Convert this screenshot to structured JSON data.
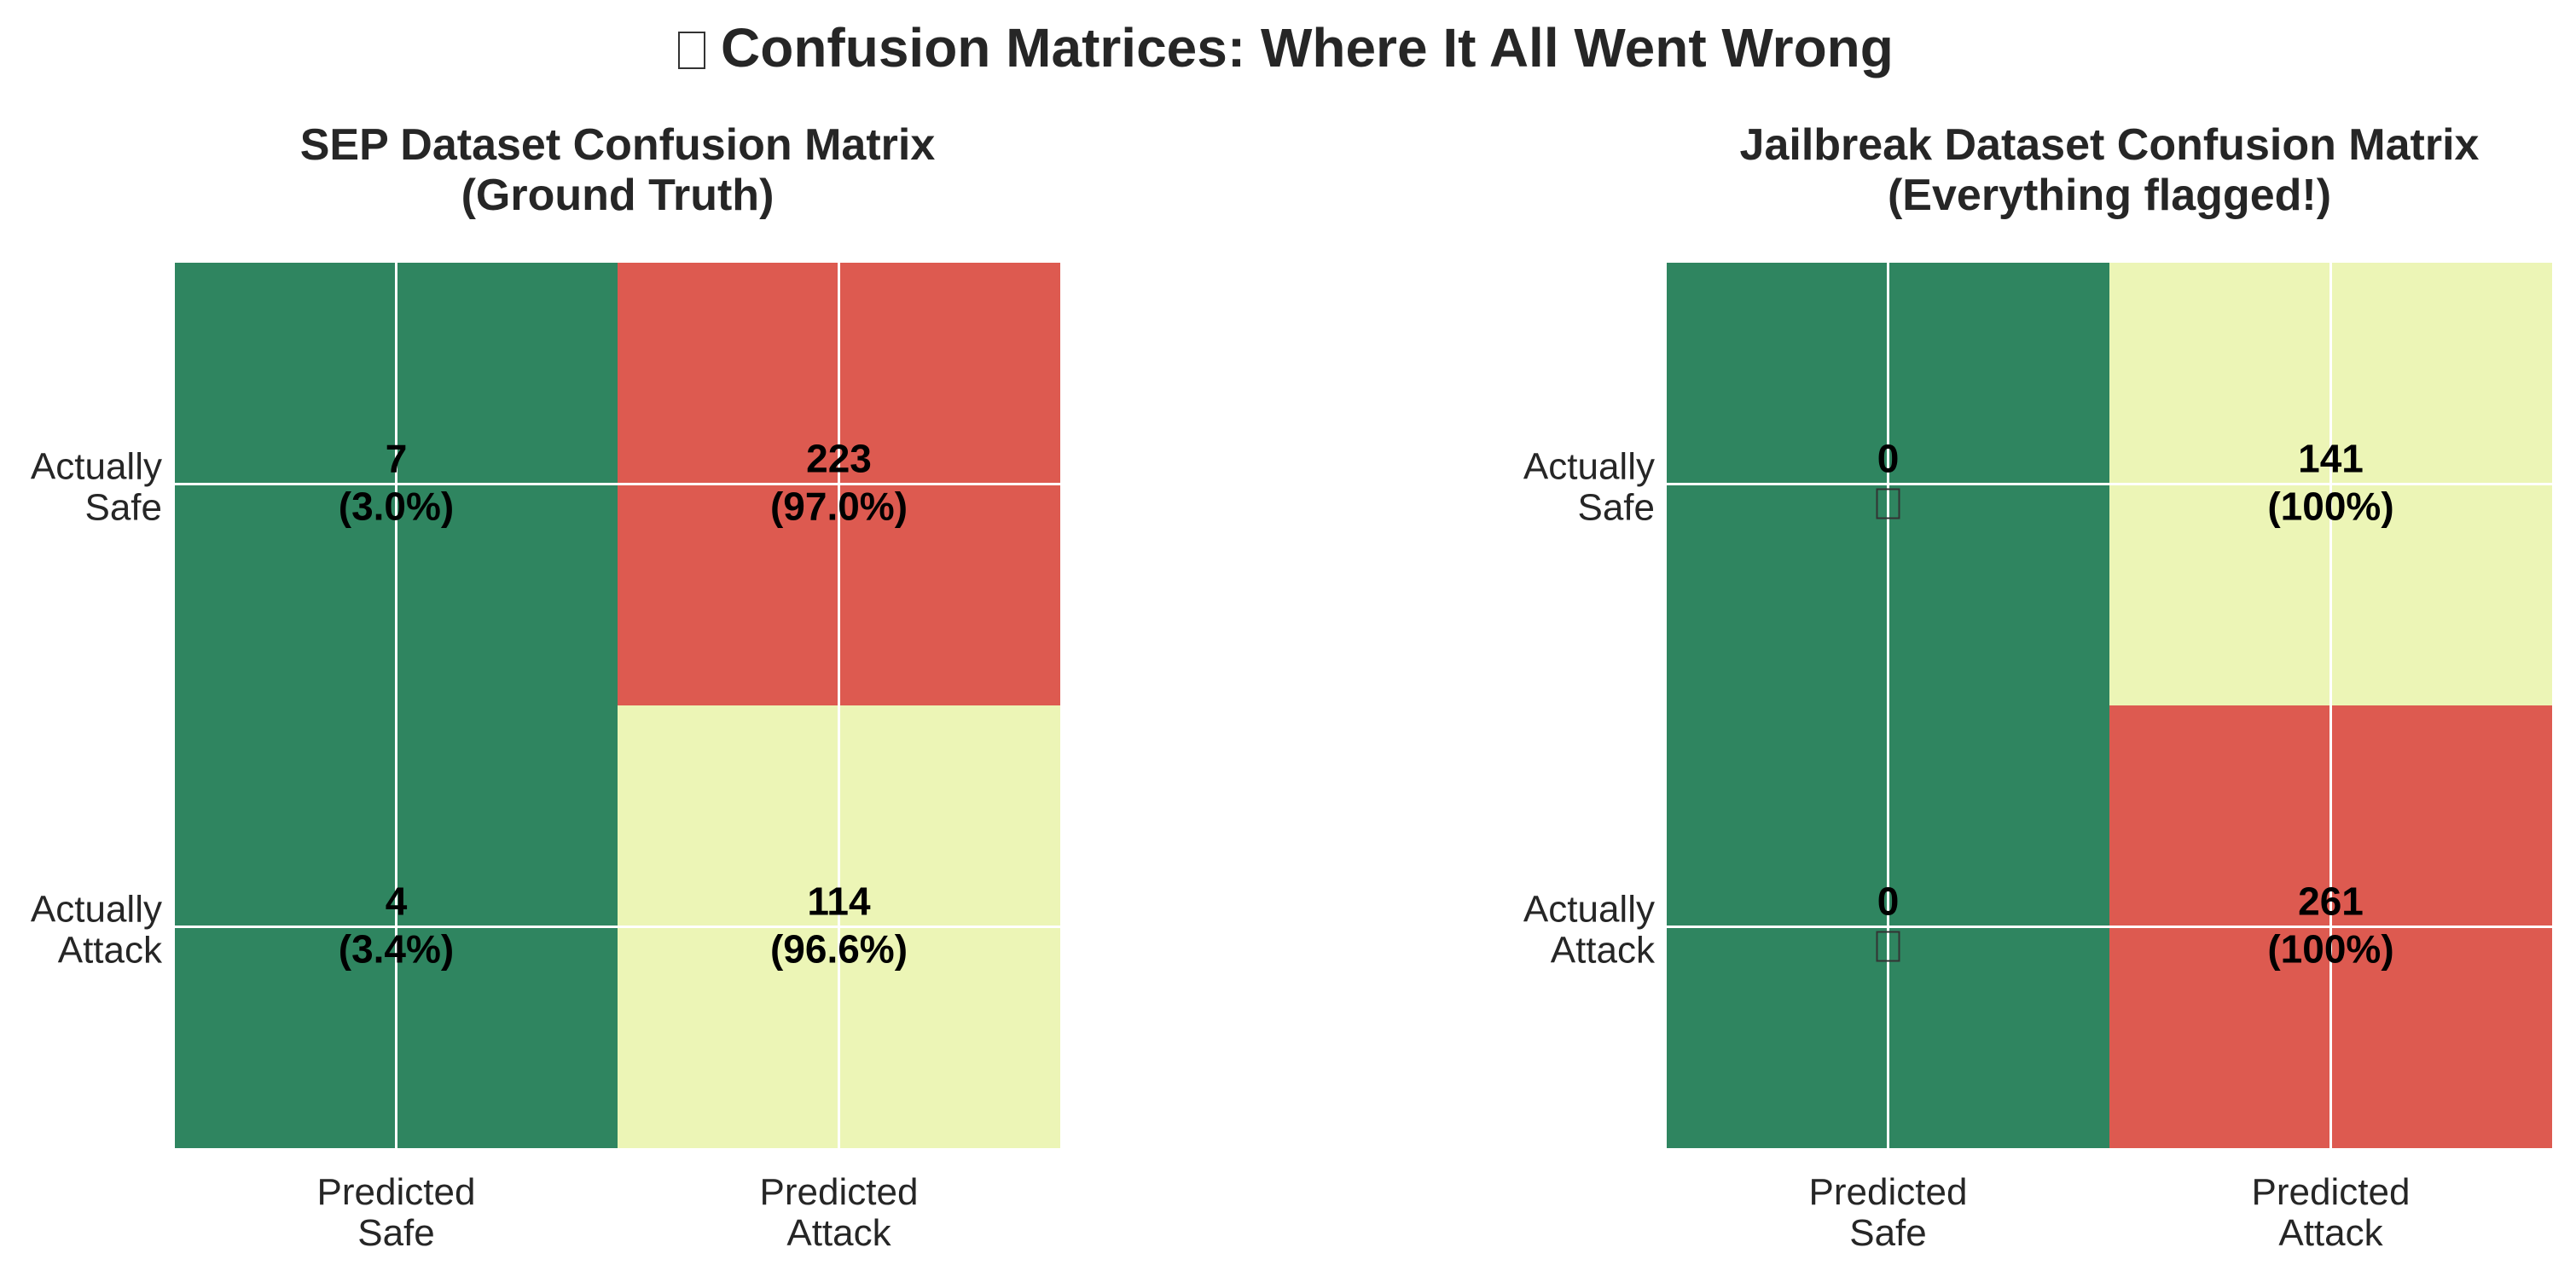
{
  "figure_title": "Confusion Matrices: Where It All Went Wrong",
  "title_icon": "missing-emoji-glyph",
  "colors": {
    "low": "#2f8560",
    "mid": "#ecf5b6",
    "high": "#dd5a50",
    "text": "#262626",
    "cell_text": "#000000",
    "grid": "#ffffff"
  },
  "chart_data": [
    {
      "type": "heatmap",
      "title": "SEP Dataset Confusion Matrix\n(Ground Truth)",
      "rows": [
        "Actually\nSafe",
        "Actually\nAttack"
      ],
      "cols": [
        "Predicted\nSafe",
        "Predicted\nAttack"
      ],
      "values": [
        [
          7,
          223
        ],
        [
          4,
          114
        ]
      ],
      "cell_labels": [
        [
          {
            "count": "7",
            "pct": "(3.0%)"
          },
          {
            "count": "223",
            "pct": "(97.0%)"
          }
        ],
        [
          {
            "count": "4",
            "pct": "(3.4%)"
          },
          {
            "count": "114",
            "pct": "(96.6%)"
          }
        ]
      ],
      "cell_colors": [
        [
          "low",
          "high"
        ],
        [
          "low",
          "mid"
        ]
      ],
      "colormap": "RdYlGn_r",
      "grid": true
    },
    {
      "type": "heatmap",
      "title": "Jailbreak Dataset Confusion Matrix\n(Everything flagged!)",
      "rows": [
        "Actually\nSafe",
        "Actually\nAttack"
      ],
      "cols": [
        "Predicted\nSafe",
        "Predicted\nAttack"
      ],
      "values": [
        [
          0,
          141
        ],
        [
          0,
          261
        ]
      ],
      "cell_labels": [
        [
          {
            "count": "0",
            "pct": "",
            "glyph": "missing-emoji-glyph"
          },
          {
            "count": "141",
            "pct": "(100%)"
          }
        ],
        [
          {
            "count": "0",
            "pct": "",
            "glyph": "missing-emoji-glyph"
          },
          {
            "count": "261",
            "pct": "(100%)"
          }
        ]
      ],
      "cell_colors": [
        [
          "low",
          "mid"
        ],
        [
          "low",
          "high"
        ]
      ],
      "colormap": "RdYlGn_r",
      "grid": true
    }
  ]
}
